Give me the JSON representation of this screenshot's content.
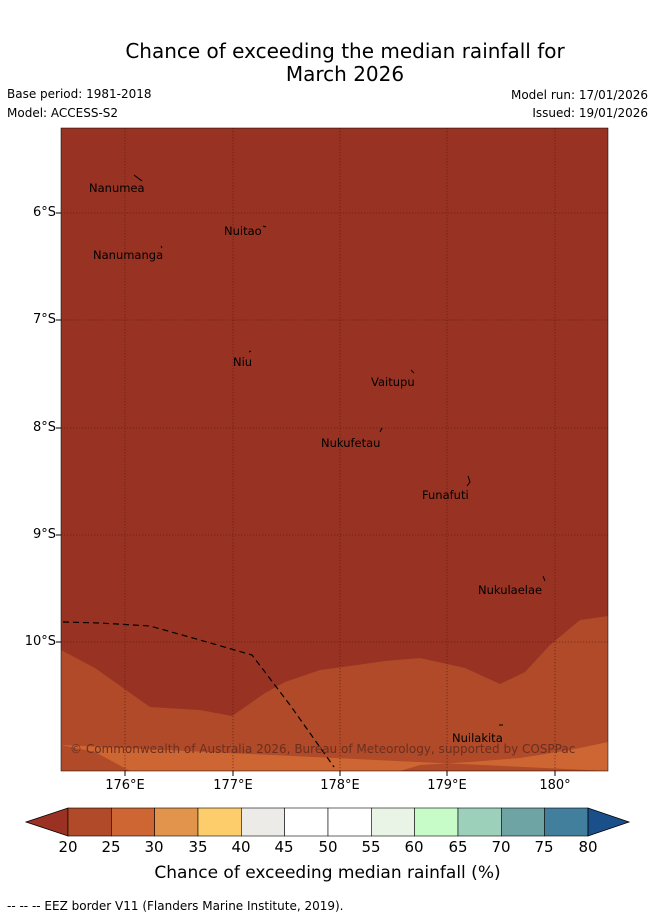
{
  "header": {
    "title_line1": "Chance of exceeding the median rainfall for",
    "title_line2": "March 2026",
    "base_period": "Base period: 1981-2018",
    "model": "Model: ACCESS-S2",
    "model_run": "Model run: 17/01/2026",
    "issued": "Issued: 19/01/2026"
  },
  "map": {
    "lat_labels": [
      "6°S",
      "7°S",
      "8°S",
      "9°S",
      "10°S"
    ],
    "lon_labels": [
      "176°E",
      "177°E",
      "178°E",
      "179°E",
      "180°"
    ],
    "islands": [
      "Nanumea",
      "Nuitao",
      "Nanumanga",
      "Niu",
      "Vaitupu",
      "Nukufetau",
      "Funafuti",
      "Nukulaelae",
      "Nuilakita"
    ],
    "copyright": "© Commonwealth of Australia 2026, Bureau of Meteorology, supported by COSPPac"
  },
  "colorbar": {
    "ticks": [
      "20",
      "25",
      "30",
      "35",
      "40",
      "45",
      "50",
      "55",
      "60",
      "65",
      "70",
      "75",
      "80"
    ],
    "colors": [
      "#9b3122",
      "#b04a28",
      "#cd6633",
      "#e3944c",
      "#fdcd6b",
      "#ecebe8",
      "#ffffff",
      "#ffffff",
      "#e9f4e6",
      "#c7fbc7",
      "#9dd0bb",
      "#6ea4a4",
      "#427f9d",
      "#1a4f8a"
    ],
    "label": "Chance of exceeding median rainfall (%)"
  },
  "footer": {
    "legend": "--  --  -- EEZ border V11 (Flanders Marine Institute, 2019)."
  }
}
